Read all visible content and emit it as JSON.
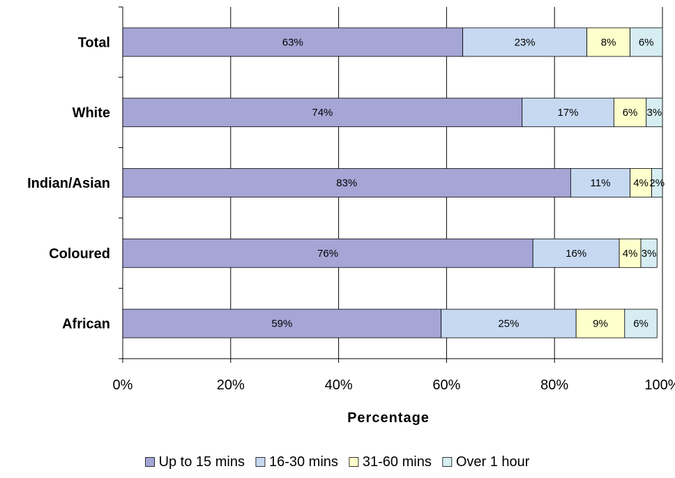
{
  "chart_data": {
    "type": "bar",
    "orientation": "horizontal",
    "stacked": true,
    "categories": [
      "Total",
      "White",
      "Indian/Asian",
      "Coloured",
      "African"
    ],
    "series": [
      {
        "name": "Up to 15 mins",
        "values": [
          63,
          74,
          83,
          76,
          59
        ],
        "labels": [
          "63%",
          "74%",
          "83%",
          "76%",
          "59%"
        ],
        "color": "#a5a5d6"
      },
      {
        "name": "16-30 mins",
        "values": [
          23,
          17,
          11,
          16,
          25
        ],
        "labels": [
          "23%",
          "17%",
          "11%",
          "16%",
          "25%"
        ],
        "color": "#c6d9f1"
      },
      {
        "name": "31-60 mins",
        "values": [
          8,
          6,
          4,
          4,
          9
        ],
        "labels": [
          "8%",
          "6%",
          "4%",
          "4%",
          "9%"
        ],
        "color": "#ffffcc"
      },
      {
        "name": "Over 1 hour",
        "values": [
          6,
          3,
          2,
          3,
          6
        ],
        "labels": [
          "6%",
          "3%",
          "2%",
          "3%",
          "6%"
        ],
        "color": "#d6eef2"
      }
    ],
    "title": "",
    "xlabel": "Percentage",
    "ylabel": "",
    "xlim": [
      0,
      100
    ],
    "xticks": [
      "0%",
      "20%",
      "40%",
      "60%",
      "80%",
      "100%"
    ],
    "grid": "vertical",
    "legend_position": "bottom"
  }
}
